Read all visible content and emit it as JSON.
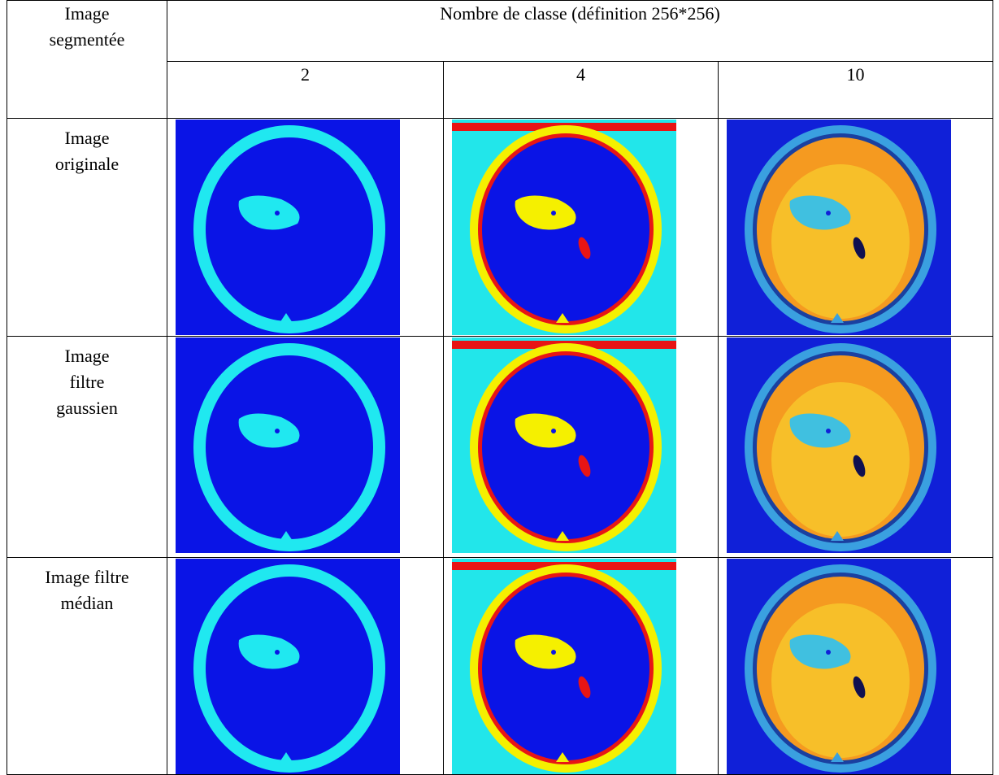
{
  "table": {
    "header": {
      "corner": "Image segmentée",
      "span": "Nombre de classe (définition 256*256)",
      "columns": [
        "2",
        "4",
        "10"
      ]
    },
    "rows": [
      {
        "label": [
          "Image",
          "originale"
        ]
      },
      {
        "label": [
          "Image",
          "filtre",
          "gaussien"
        ]
      },
      {
        "label": [
          "Image filtre",
          "médian"
        ]
      }
    ]
  }
}
